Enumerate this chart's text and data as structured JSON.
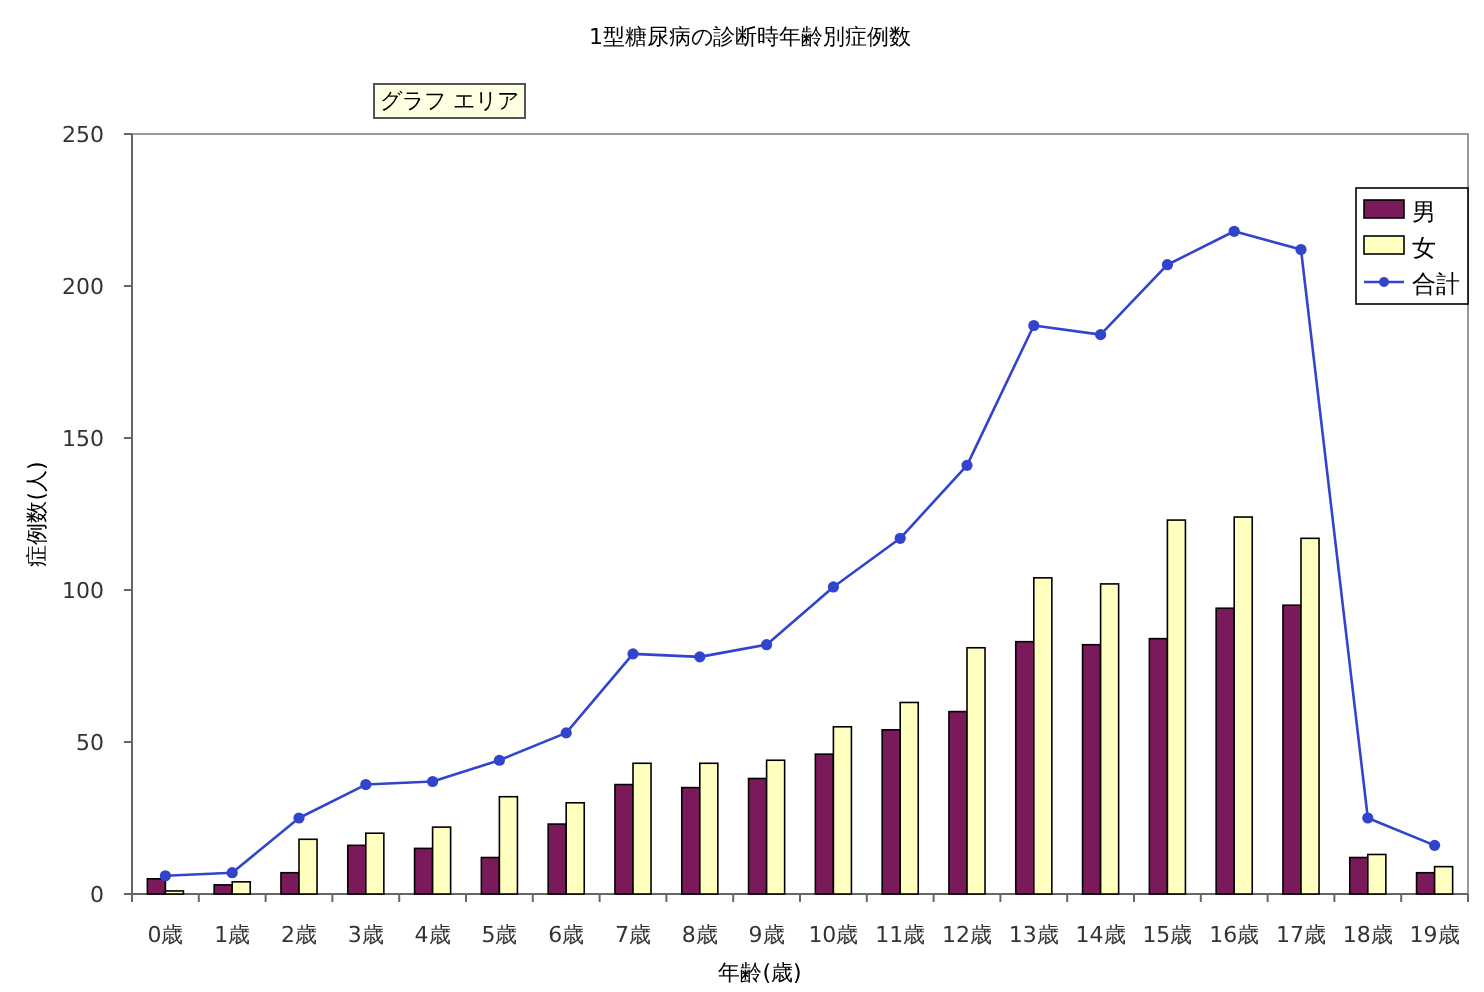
{
  "chart_data": {
    "type": "bar",
    "title": "1型糖尿病の診断時年齢別症例数",
    "xlabel": "年齢(歳)",
    "ylabel": "症例数(人)",
    "annotations": [
      "グラフ エリア"
    ],
    "categories": [
      "0歳",
      "1歳",
      "2歳",
      "3歳",
      "4歳",
      "5歳",
      "6歳",
      "7歳",
      "8歳",
      "9歳",
      "10歳",
      "11歳",
      "12歳",
      "13歳",
      "14歳",
      "15歳",
      "16歳",
      "17歳",
      "18歳",
      "19歳"
    ],
    "series": [
      {
        "name": "男",
        "color": "#7b1a5a",
        "values": [
          5,
          3,
          7,
          16,
          15,
          12,
          23,
          36,
          35,
          38,
          46,
          54,
          60,
          83,
          82,
          84,
          94,
          95,
          12,
          7
        ]
      },
      {
        "name": "女",
        "color": "#ffffc0",
        "values": [
          1,
          4,
          18,
          20,
          22,
          32,
          30,
          43,
          43,
          44,
          55,
          63,
          81,
          104,
          102,
          123,
          124,
          117,
          13,
          9
        ]
      },
      {
        "name": "合計",
        "type": "line",
        "color": "#3344cc",
        "marker": "circle",
        "values": [
          6,
          7,
          25,
          36,
          37,
          44,
          53,
          79,
          78,
          82,
          101,
          117,
          141,
          187,
          184,
          207,
          218,
          212,
          25,
          16
        ]
      }
    ],
    "ylim": [
      0,
      250
    ],
    "yticks": [
      0,
      50,
      100,
      150,
      200,
      250
    ],
    "grid": false,
    "legend": "top right"
  }
}
